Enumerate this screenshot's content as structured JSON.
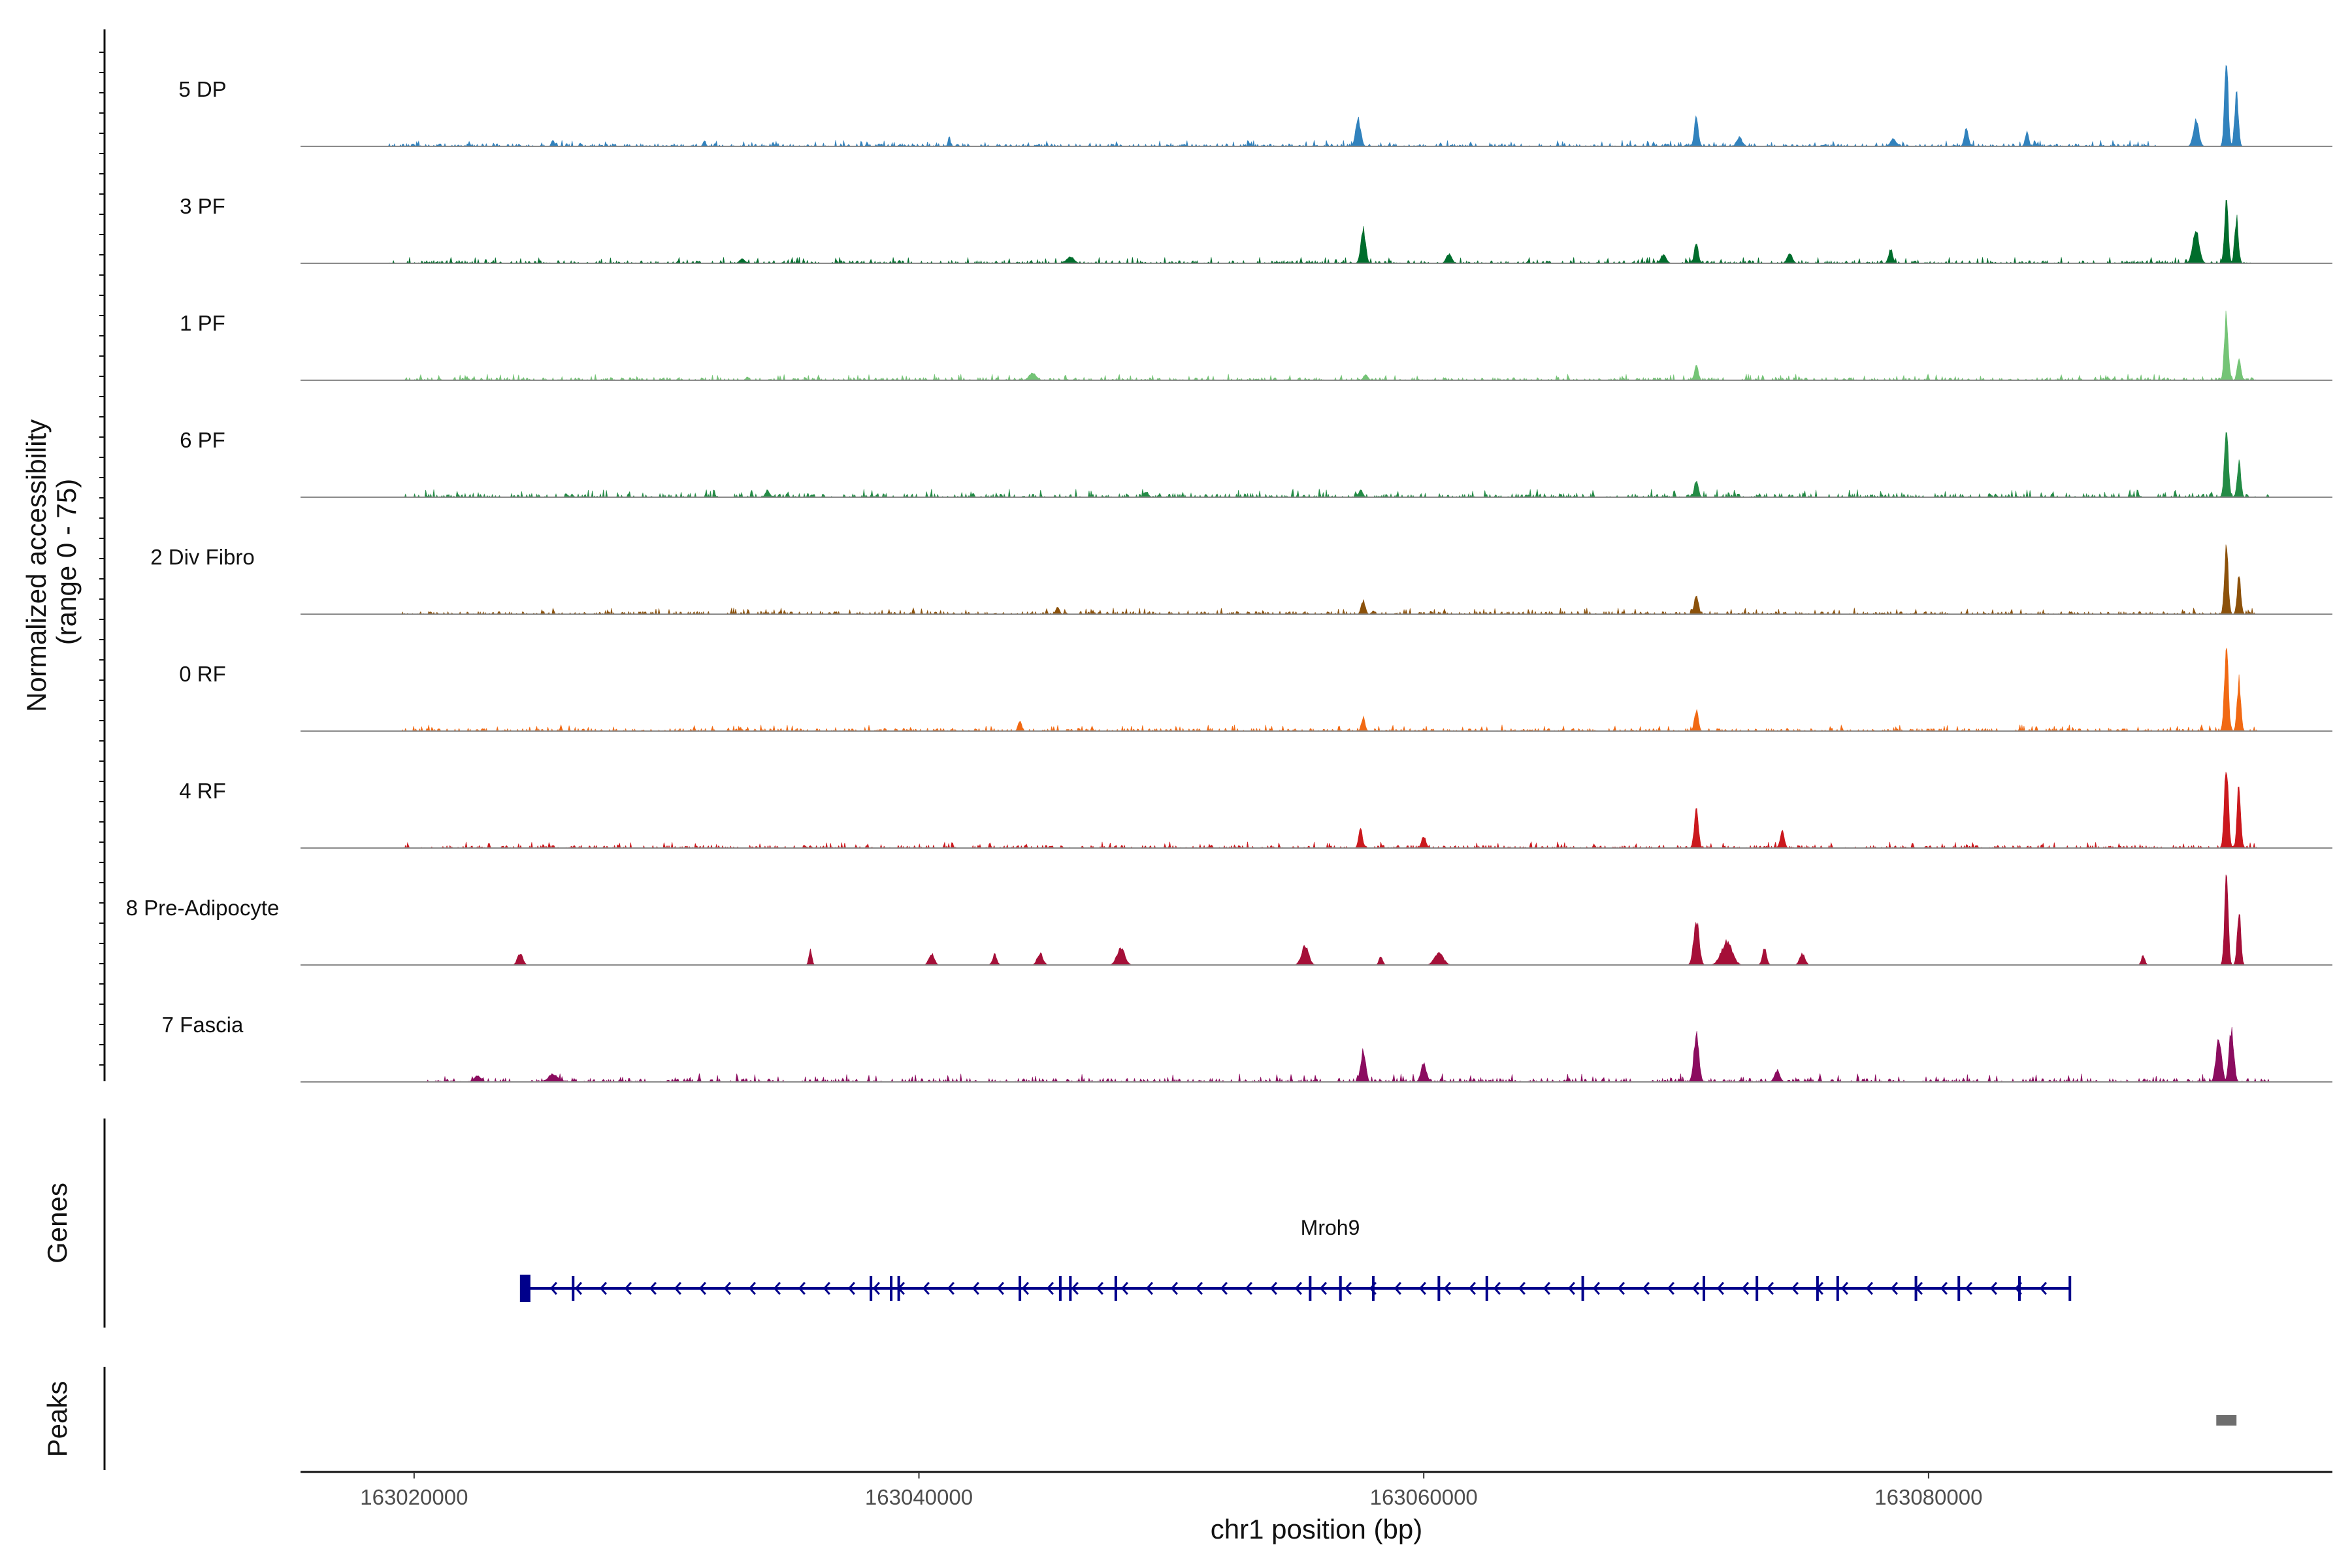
{
  "chart_data": {
    "type": "area",
    "title": "",
    "region": {
      "chrom": "chr1",
      "start": 163015500,
      "end": 163096000
    },
    "ylabel": "Normalized accessibility\n(range 0 - 75)",
    "ylim": [
      0,
      75
    ],
    "xlabel": "chr1 position (bp)",
    "x_ticks": [
      163020000,
      163040000,
      163060000,
      163080000
    ],
    "x_tick_labels": [
      "163020000",
      "163040000",
      "163060000",
      "163080000"
    ],
    "series": [
      {
        "name": "5 DP",
        "color": "#3182BD",
        "peaks": [
          [
            163025500,
            6,
            80
          ],
          [
            163031500,
            5,
            80
          ],
          [
            163041200,
            9,
            60
          ],
          [
            163057400,
            24,
            140
          ],
          [
            163070800,
            26,
            110
          ],
          [
            163072500,
            8,
            150
          ],
          [
            163078600,
            7,
            150
          ],
          [
            163081500,
            15,
            110
          ],
          [
            163083900,
            12,
            100
          ],
          [
            163090600,
            22,
            150
          ],
          [
            163091800,
            75,
            100
          ],
          [
            163092200,
            48,
            100
          ]
        ],
        "noise": 3,
        "noise_range": [
          163019000,
          163089000
        ]
      },
      {
        "name": "3 PF",
        "color": "#006D2C",
        "peaks": [
          [
            163033000,
            4,
            150
          ],
          [
            163046000,
            6,
            200
          ],
          [
            163057600,
            30,
            130
          ],
          [
            163061000,
            8,
            150
          ],
          [
            163070800,
            18,
            110
          ],
          [
            163069500,
            8,
            150
          ],
          [
            163074500,
            8,
            150
          ],
          [
            163078500,
            12,
            120
          ],
          [
            163090600,
            28,
            180
          ],
          [
            163091800,
            60,
            100
          ],
          [
            163092200,
            40,
            100
          ]
        ],
        "noise": 3,
        "noise_range": [
          163019000,
          163093000
        ]
      },
      {
        "name": "1 PF",
        "color": "#74C476",
        "peaks": [
          [
            163044500,
            6,
            200
          ],
          [
            163057700,
            5,
            120
          ],
          [
            163070800,
            12,
            110
          ],
          [
            163091800,
            55,
            110
          ],
          [
            163092300,
            20,
            100
          ]
        ],
        "noise": 3,
        "noise_range": [
          163019500,
          163093000
        ]
      },
      {
        "name": "6 PF",
        "color": "#238B45",
        "peaks": [
          [
            163034000,
            6,
            120
          ],
          [
            163049000,
            5,
            120
          ],
          [
            163057500,
            6,
            120
          ],
          [
            163070800,
            14,
            110
          ],
          [
            163091800,
            55,
            110
          ],
          [
            163092300,
            32,
            100
          ]
        ],
        "noise": 4,
        "noise_range": [
          163019500,
          163093500
        ]
      },
      {
        "name": "2 Div Fibro",
        "color": "#8C510A",
        "peaks": [
          [
            163045500,
            6,
            100
          ],
          [
            163057600,
            12,
            110
          ],
          [
            163070800,
            18,
            110
          ],
          [
            163091800,
            60,
            100
          ],
          [
            163092300,
            34,
            100
          ]
        ],
        "noise": 3,
        "noise_range": [
          163019500,
          163093000
        ]
      },
      {
        "name": "0 RF",
        "color": "#F16913",
        "peaks": [
          [
            163044000,
            9,
            100
          ],
          [
            163057600,
            12,
            100
          ],
          [
            163070800,
            18,
            110
          ],
          [
            163091800,
            68,
            110
          ],
          [
            163092300,
            44,
            100
          ]
        ],
        "noise": 3,
        "noise_range": [
          163019500,
          163093000
        ]
      },
      {
        "name": "4 RF",
        "color": "#CB181D",
        "peaks": [
          [
            163057500,
            16,
            110
          ],
          [
            163060000,
            10,
            120
          ],
          [
            163070800,
            36,
            110
          ],
          [
            163074200,
            14,
            120
          ],
          [
            163091800,
            75,
            110
          ],
          [
            163092300,
            55,
            100
          ]
        ],
        "noise": 3,
        "noise_range": [
          163019500,
          163093000
        ]
      },
      {
        "name": "8 Pre-Adipocyte",
        "color": "#A50F38",
        "peaks": [
          [
            163024200,
            10,
            150
          ],
          [
            163035700,
            14,
            80
          ],
          [
            163040500,
            10,
            150
          ],
          [
            163043000,
            9,
            120
          ],
          [
            163044800,
            10,
            160
          ],
          [
            163048000,
            14,
            220
          ],
          [
            163055300,
            16,
            200
          ],
          [
            163058300,
            8,
            100
          ],
          [
            163060600,
            10,
            250
          ],
          [
            163070800,
            40,
            150
          ],
          [
            163072000,
            20,
            300
          ],
          [
            163073500,
            14,
            120
          ],
          [
            163075000,
            10,
            150
          ],
          [
            163088500,
            8,
            100
          ],
          [
            163091800,
            75,
            100
          ],
          [
            163092300,
            45,
            100
          ]
        ],
        "noise": 0,
        "noise_range": [
          163024000,
          163093000
        ]
      },
      {
        "name": "7 Fascia",
        "color": "#8B0C5F",
        "peaks": [
          [
            163022500,
            5,
            200
          ],
          [
            163025500,
            7,
            250
          ],
          [
            163057600,
            28,
            130
          ],
          [
            163060000,
            16,
            150
          ],
          [
            163070800,
            40,
            140
          ],
          [
            163074000,
            10,
            150
          ],
          [
            163091500,
            40,
            150
          ],
          [
            163092000,
            45,
            130
          ]
        ],
        "noise": 4,
        "noise_range": [
          163020500,
          163093500
        ]
      }
    ],
    "genes": {
      "label": "Genes",
      "items": [
        {
          "name": "Mroh9",
          "start": 163024400,
          "end": 163085600,
          "strand": "-",
          "exons": [
            163024400,
            163026300,
            163038100,
            163038900,
            163039200,
            163044000,
            163045600,
            163046000,
            163047800,
            163055500,
            163056700,
            163058000,
            163060600,
            163062500,
            163066300,
            163071100,
            163073200,
            163075600,
            163076400,
            163079500,
            163081200,
            163083600,
            163085600
          ]
        }
      ],
      "color": "#00008B"
    },
    "peaks_track": {
      "label": "Peaks",
      "regions": [
        [
          163091400,
          163092200
        ]
      ],
      "color": "#6E6E6E"
    }
  }
}
